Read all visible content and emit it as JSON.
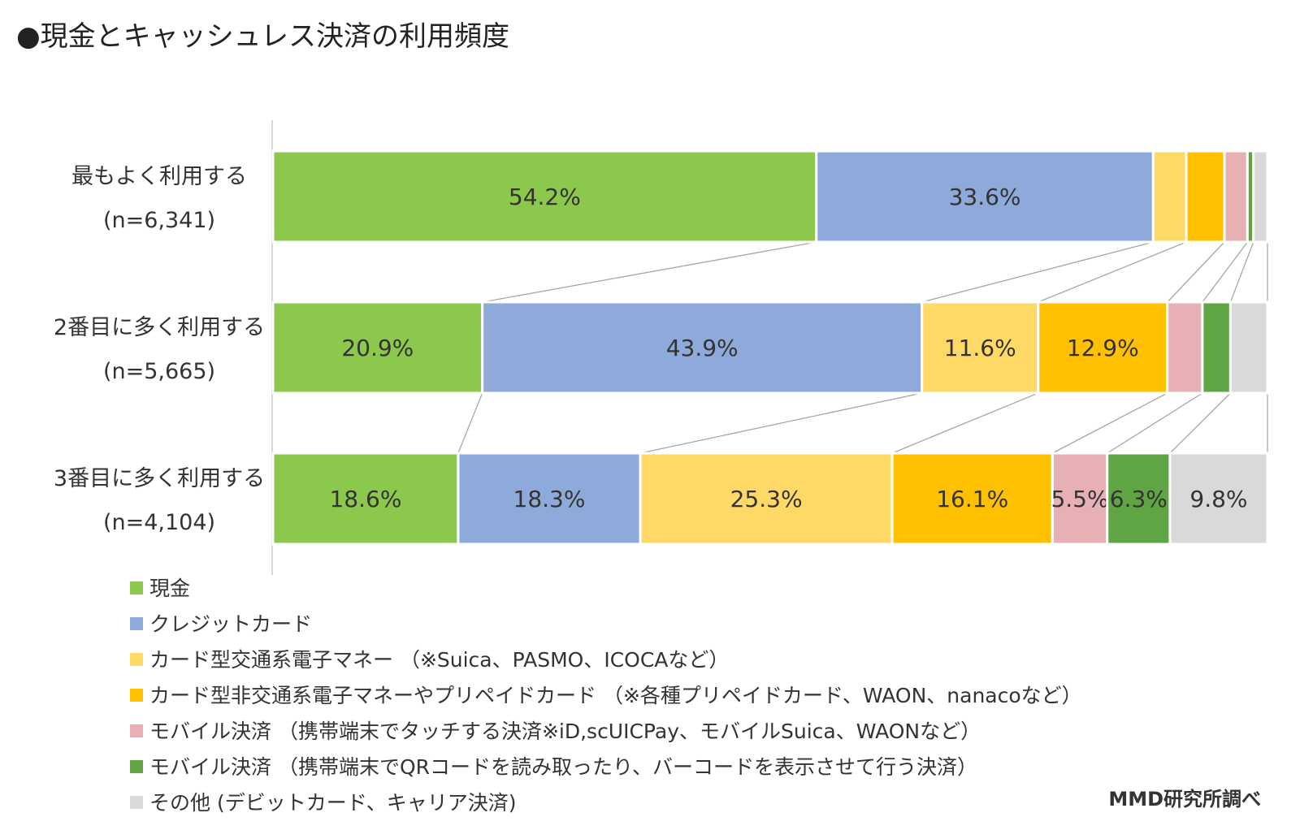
{
  "chart_data": {
    "type": "bar",
    "stacked": "100%",
    "orientation": "horizontal",
    "title": "●現金とキャッシュレス決済の利用頻度",
    "categories": [
      {
        "label": "最もよく利用する",
        "n_label": "(n=6,341)"
      },
      {
        "label": "2番目に多く利用する",
        "n_label": "(n=5,665)"
      },
      {
        "label": "3番目に多く利用する",
        "n_label": "(n=4,104)"
      }
    ],
    "series": [
      {
        "name": "現金",
        "color": "#8cc84b",
        "values": [
          54.2,
          20.9,
          18.6
        ],
        "labels": [
          "54.2%",
          "20.9%",
          "18.6%"
        ]
      },
      {
        "name": "クレジットカード",
        "color": "#8eaadb",
        "values": [
          33.6,
          43.9,
          18.3
        ],
        "labels": [
          "33.6%",
          "43.9%",
          "18.3%"
        ]
      },
      {
        "name": "カード型交通系電子マネー （※Suica、PASMO、ICOCAなど）",
        "color": "#ffd966",
        "values": [
          3.3,
          11.6,
          25.3
        ],
        "labels": [
          "",
          "11.6%",
          "25.3%"
        ]
      },
      {
        "name": "カード型非交通系電子マネーやプリペイドカード （※各種プリペイドカード、WAON、nanacoなど）",
        "color": "#ffc000",
        "values": [
          3.8,
          12.9,
          16.1
        ],
        "labels": [
          "",
          "12.9%",
          "16.1%"
        ]
      },
      {
        "name": "モバイル決済 （携帯端末でタッチする決済※iD,scUICPay、モバイルSuica、WAONなど）",
        "color": "#e6b0b5",
        "values": [
          2.3,
          3.5,
          5.5
        ],
        "labels": [
          "",
          "",
          "5.5%"
        ]
      },
      {
        "name": "モバイル決済 （携帯端末でQRコードを読み取ったり、バーコードを表示させて行う決済）",
        "color": "#5fa544",
        "values": [
          0.6,
          2.8,
          6.3
        ],
        "labels": [
          "",
          "",
          "6.3%"
        ]
      },
      {
        "name": "その他 (デビットカード、キャリア決済)",
        "color": "#d9d9d9",
        "values": [
          1.4,
          3.7,
          9.8
        ],
        "labels": [
          "",
          "",
          "9.8%"
        ]
      }
    ],
    "xlim": [
      0,
      100
    ],
    "legend_position": "bottom-left",
    "grid": false,
    "series_connectors": true
  },
  "credit": "MMD研究所調べ"
}
